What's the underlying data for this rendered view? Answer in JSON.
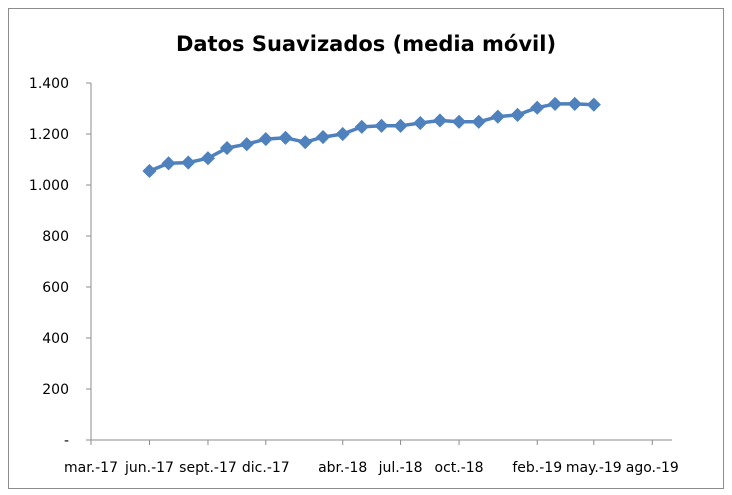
{
  "chart_data": {
    "type": "line",
    "title": "Datos Suavizados (media móvil)",
    "xlabel": "",
    "ylabel": "",
    "y_ticks": [
      "-",
      "200",
      "400",
      "600",
      "800",
      "1.000",
      "1.200",
      "1.400"
    ],
    "y_tick_values": [
      0,
      200,
      400,
      600,
      800,
      1000,
      1200,
      1400
    ],
    "x_ticks": [
      "mar.-17",
      "jun.-17",
      "sept.-17",
      "dic.-17",
      "abr.-18",
      "jul.-18",
      "oct.-18",
      "feb.-19",
      "may.-19",
      "ago.-19"
    ],
    "x_tick_dates": [
      "2017-03-01",
      "2017-06-01",
      "2017-09-01",
      "2017-12-01",
      "2018-04-01",
      "2018-07-01",
      "2018-10-01",
      "2019-02-01",
      "2019-05-01",
      "2019-08-01"
    ],
    "ylim": [
      0,
      1400
    ],
    "xlim": [
      "2017-03-01",
      "2019-09-01"
    ],
    "grid": false,
    "legend": "none",
    "series": [
      {
        "color": "#4F81BD",
        "marker": "diamond",
        "points": [
          {
            "x": "2017-06-01",
            "y": 1055
          },
          {
            "x": "2017-07-01",
            "y": 1085
          },
          {
            "x": "2017-08-01",
            "y": 1088
          },
          {
            "x": "2017-09-01",
            "y": 1105
          },
          {
            "x": "2017-10-01",
            "y": 1145
          },
          {
            "x": "2017-11-01",
            "y": 1160
          },
          {
            "x": "2017-12-01",
            "y": 1180
          },
          {
            "x": "2018-01-01",
            "y": 1185
          },
          {
            "x": "2018-02-01",
            "y": 1168
          },
          {
            "x": "2018-03-01",
            "y": 1188
          },
          {
            "x": "2018-04-01",
            "y": 1200
          },
          {
            "x": "2018-05-01",
            "y": 1228
          },
          {
            "x": "2018-06-01",
            "y": 1232
          },
          {
            "x": "2018-07-01",
            "y": 1232
          },
          {
            "x": "2018-08-01",
            "y": 1243
          },
          {
            "x": "2018-09-01",
            "y": 1253
          },
          {
            "x": "2018-10-01",
            "y": 1248
          },
          {
            "x": "2018-11-01",
            "y": 1248
          },
          {
            "x": "2018-12-01",
            "y": 1268
          },
          {
            "x": "2019-01-01",
            "y": 1275
          },
          {
            "x": "2019-02-01",
            "y": 1303
          },
          {
            "x": "2019-03-01",
            "y": 1318
          },
          {
            "x": "2019-04-01",
            "y": 1318
          },
          {
            "x": "2019-05-01",
            "y": 1315
          }
        ]
      }
    ]
  }
}
